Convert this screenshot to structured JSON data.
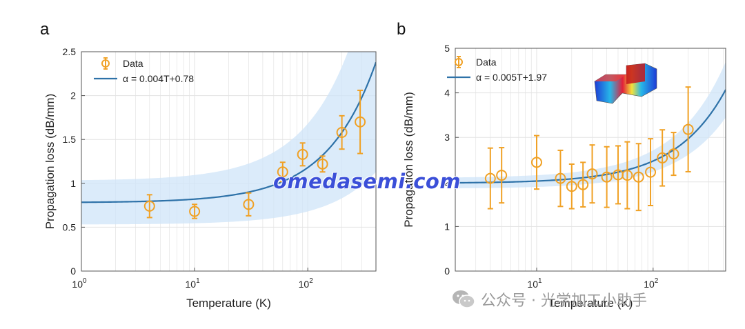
{
  "chart_data": [
    {
      "panel": "a",
      "type": "scatter",
      "xlabel": "Temperature (K)",
      "ylabel": "Propagation loss (dB/mm)",
      "xscale": "log",
      "xlim": [
        1,
        400
      ],
      "ylim": [
        0,
        2.5
      ],
      "x_ticks": [
        1,
        10,
        100
      ],
      "x_tick_labels": [
        {
          "base": "10",
          "exp": "0"
        },
        {
          "base": "10",
          "exp": "1"
        },
        {
          "base": "10",
          "exp": "2"
        }
      ],
      "y_ticks": [
        "0",
        "0.5",
        "1",
        "1.5",
        "2",
        "2.5"
      ],
      "grid": true,
      "legend_position": "top-left",
      "series": [
        {
          "name": "Data",
          "type": "scatter",
          "x": [
            4,
            10,
            30,
            60,
            90,
            135,
            200,
            290
          ],
          "y": [
            0.74,
            0.68,
            0.76,
            1.13,
            1.33,
            1.22,
            1.58,
            1.7
          ],
          "err": [
            0.13,
            0.08,
            0.13,
            0.11,
            0.13,
            0.09,
            0.19,
            0.36
          ]
        },
        {
          "name": "α = 0.004T+0.78",
          "type": "line",
          "slope": 0.004,
          "intercept": 0.78
        }
      ],
      "confidence_band": {
        "lower_offset": 0.25,
        "upper_offset": 0.25,
        "spread_per_K": 0.0025
      }
    },
    {
      "panel": "b",
      "type": "scatter",
      "xlabel": "Temperature (K)",
      "ylabel": "Propagation loss (dB/mm)",
      "xscale": "log",
      "xlim": [
        2,
        420
      ],
      "ylim": [
        0,
        5
      ],
      "x_ticks": [
        10,
        100
      ],
      "x_tick_labels": [
        {
          "base": "10",
          "exp": "1"
        },
        {
          "base": "10",
          "exp": "2"
        }
      ],
      "y_ticks": [
        "0",
        "1",
        "2",
        "3",
        "4",
        "5"
      ],
      "grid": true,
      "legend_position": "top-left",
      "series": [
        {
          "name": "Data",
          "type": "scatter",
          "x": [
            4,
            5,
            10,
            16,
            20,
            25,
            30,
            40,
            50,
            60,
            75,
            95,
            120,
            150,
            200
          ],
          "y": [
            2.08,
            2.15,
            2.44,
            2.08,
            1.9,
            1.94,
            2.18,
            2.11,
            2.16,
            2.15,
            2.11,
            2.22,
            2.54,
            2.63,
            3.18
          ],
          "err": [
            0.68,
            0.62,
            0.6,
            0.63,
            0.5,
            0.5,
            0.65,
            0.68,
            0.65,
            0.75,
            0.75,
            0.75,
            0.63,
            0.48,
            0.95
          ]
        },
        {
          "name": "α = 0.005T+1.97",
          "type": "line",
          "slope": 0.005,
          "intercept": 1.97
        }
      ],
      "confidence_band": {
        "lower_offset": 0.12,
        "upper_offset": 0.12,
        "spread_per_K": 0.0012
      }
    }
  ],
  "colors": {
    "data": "#f0a125",
    "fit": "#2e72a8",
    "band": "#cfe4f8",
    "grid": "#e3e3e3"
  },
  "overlays": {
    "watermark": "omedasemi.com",
    "wechat_label": "公众号 · 光学加工小助手",
    "wechat_icon": "wechat-icon"
  }
}
